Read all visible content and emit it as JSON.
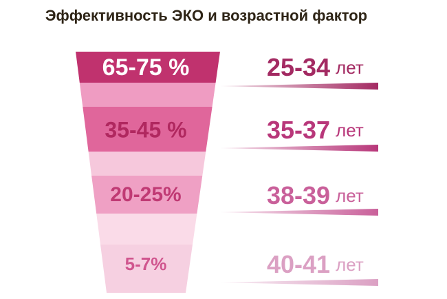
{
  "title": "Эффективность ЭКО и возрастной фактор",
  "levels": [
    {
      "rate": "65-75 %",
      "age": "25-34",
      "unit": "лет"
    },
    {
      "rate": "35-45 %",
      "age": "35-37",
      "unit": "лет"
    },
    {
      "rate": "20-25%",
      "age": "38-39",
      "unit": "лет"
    },
    {
      "rate": "5-7%",
      "age": "40-41",
      "unit": "лет"
    }
  ]
}
